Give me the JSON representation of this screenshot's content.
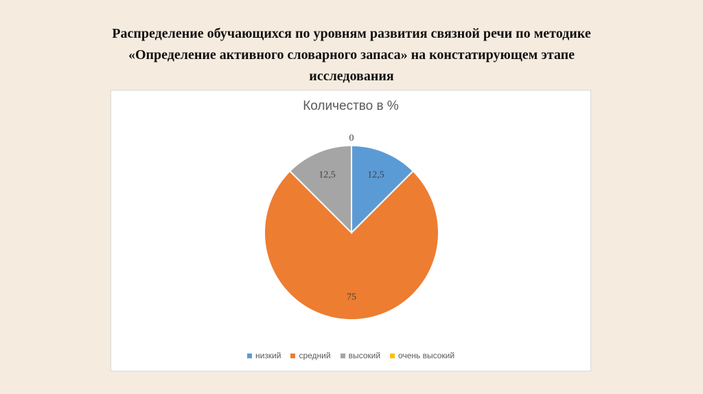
{
  "slide": {
    "title_lines": [
      "Распределение обучающихся по уровням развития связной речи по методике",
      "«Определение активного словарного запаса» на констатирующем этапе",
      "исследования"
    ]
  },
  "chart_data": {
    "type": "pie",
    "title": "Количество в %",
    "categories": [
      "низкий",
      "средний",
      "высокий",
      "очень высокий"
    ],
    "values": [
      12.5,
      75,
      12.5,
      0
    ],
    "value_labels": [
      "12,5",
      "75",
      "12,5",
      "0"
    ],
    "colors": [
      "#5b9bd5",
      "#ed7d31",
      "#a5a5a5",
      "#ffc000"
    ],
    "legend_position": "bottom",
    "start_angle_deg": 0,
    "direction": "clockwise"
  }
}
